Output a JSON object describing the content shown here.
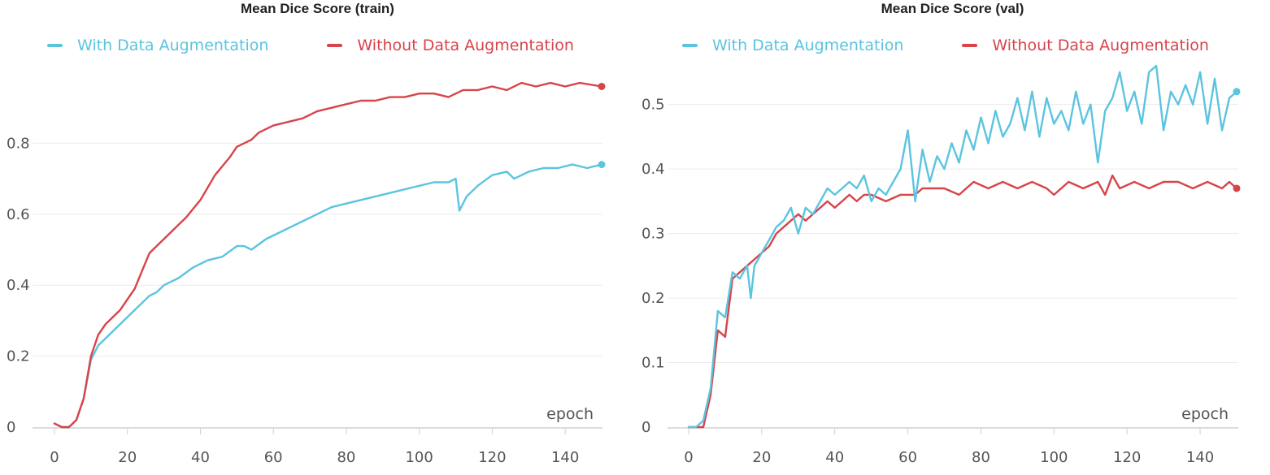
{
  "chart_data": [
    {
      "type": "line",
      "title": "Mean Dice Score (train)",
      "xlabel": "epoch",
      "ylabel": "",
      "xlim": [
        0,
        150
      ],
      "ylim": [
        0,
        1.0
      ],
      "xticks": [
        0,
        20,
        40,
        60,
        80,
        100,
        120,
        140
      ],
      "xtick_labels": [
        "0",
        "20",
        "40",
        "60",
        "80",
        "100",
        "120",
        "140"
      ],
      "yticks": [
        0,
        0.2,
        0.4,
        0.6,
        0.8
      ],
      "ytick_labels": [
        "0",
        "0.2",
        "0.4",
        "0.6",
        "0.8"
      ],
      "grid": "horizontal",
      "legend": "top-left",
      "series": [
        {
          "name": "With Data Augmentation",
          "color": "#5bc4df",
          "points": [
            [
              0,
              0.01
            ],
            [
              2,
              0.0
            ],
            [
              4,
              0.0
            ],
            [
              6,
              0.02
            ],
            [
              8,
              0.08
            ],
            [
              10,
              0.19
            ],
            [
              12,
              0.23
            ],
            [
              14,
              0.25
            ],
            [
              16,
              0.27
            ],
            [
              18,
              0.29
            ],
            [
              20,
              0.31
            ],
            [
              24,
              0.35
            ],
            [
              26,
              0.37
            ],
            [
              28,
              0.38
            ],
            [
              30,
              0.4
            ],
            [
              34,
              0.42
            ],
            [
              38,
              0.45
            ],
            [
              42,
              0.47
            ],
            [
              46,
              0.48
            ],
            [
              50,
              0.51
            ],
            [
              52,
              0.51
            ],
            [
              54,
              0.5
            ],
            [
              58,
              0.53
            ],
            [
              60,
              0.54
            ],
            [
              64,
              0.56
            ],
            [
              68,
              0.58
            ],
            [
              72,
              0.6
            ],
            [
              76,
              0.62
            ],
            [
              80,
              0.63
            ],
            [
              84,
              0.64
            ],
            [
              88,
              0.65
            ],
            [
              92,
              0.66
            ],
            [
              96,
              0.67
            ],
            [
              100,
              0.68
            ],
            [
              104,
              0.69
            ],
            [
              108,
              0.69
            ],
            [
              110,
              0.7
            ],
            [
              111,
              0.61
            ],
            [
              113,
              0.65
            ],
            [
              116,
              0.68
            ],
            [
              120,
              0.71
            ],
            [
              124,
              0.72
            ],
            [
              126,
              0.7
            ],
            [
              130,
              0.72
            ],
            [
              134,
              0.73
            ],
            [
              138,
              0.73
            ],
            [
              142,
              0.74
            ],
            [
              146,
              0.73
            ],
            [
              150,
              0.74
            ]
          ]
        },
        {
          "name": "Without Data Augmentation",
          "color": "#d9434a",
          "points": [
            [
              0,
              0.01
            ],
            [
              2,
              0.0
            ],
            [
              4,
              0.0
            ],
            [
              6,
              0.02
            ],
            [
              8,
              0.08
            ],
            [
              10,
              0.2
            ],
            [
              12,
              0.26
            ],
            [
              14,
              0.29
            ],
            [
              16,
              0.31
            ],
            [
              18,
              0.33
            ],
            [
              20,
              0.36
            ],
            [
              22,
              0.39
            ],
            [
              24,
              0.44
            ],
            [
              26,
              0.49
            ],
            [
              28,
              0.51
            ],
            [
              30,
              0.53
            ],
            [
              32,
              0.55
            ],
            [
              34,
              0.57
            ],
            [
              36,
              0.59
            ],
            [
              40,
              0.64
            ],
            [
              44,
              0.71
            ],
            [
              48,
              0.76
            ],
            [
              50,
              0.79
            ],
            [
              52,
              0.8
            ],
            [
              54,
              0.81
            ],
            [
              56,
              0.83
            ],
            [
              60,
              0.85
            ],
            [
              64,
              0.86
            ],
            [
              68,
              0.87
            ],
            [
              72,
              0.89
            ],
            [
              76,
              0.9
            ],
            [
              80,
              0.91
            ],
            [
              84,
              0.92
            ],
            [
              88,
              0.92
            ],
            [
              92,
              0.93
            ],
            [
              96,
              0.93
            ],
            [
              100,
              0.94
            ],
            [
              104,
              0.94
            ],
            [
              108,
              0.93
            ],
            [
              112,
              0.95
            ],
            [
              116,
              0.95
            ],
            [
              120,
              0.96
            ],
            [
              124,
              0.95
            ],
            [
              128,
              0.97
            ],
            [
              132,
              0.96
            ],
            [
              136,
              0.97
            ],
            [
              140,
              0.96
            ],
            [
              144,
              0.97
            ],
            [
              150,
              0.96
            ]
          ]
        }
      ]
    },
    {
      "type": "line",
      "title": "Mean Dice Score (val)",
      "xlabel": "epoch",
      "ylabel": "",
      "xlim": [
        0,
        150
      ],
      "ylim": [
        0,
        0.56
      ],
      "xticks": [
        0,
        20,
        40,
        60,
        80,
        100,
        120,
        140
      ],
      "xtick_labels": [
        "0",
        "20",
        "40",
        "60",
        "80",
        "100",
        "120",
        "140"
      ],
      "yticks": [
        0,
        0.1,
        0.2,
        0.3,
        0.4,
        0.5
      ],
      "ytick_labels": [
        "0",
        "0.1",
        "0.2",
        "0.3",
        "0.4",
        "0.5"
      ],
      "grid": "horizontal",
      "legend": "top-left",
      "series": [
        {
          "name": "With Data Augmentation",
          "color": "#5bc4df",
          "points": [
            [
              0,
              0.0
            ],
            [
              2,
              0.0
            ],
            [
              4,
              0.01
            ],
            [
              6,
              0.06
            ],
            [
              8,
              0.18
            ],
            [
              10,
              0.17
            ],
            [
              12,
              0.24
            ],
            [
              14,
              0.23
            ],
            [
              16,
              0.25
            ],
            [
              17,
              0.2
            ],
            [
              18,
              0.25
            ],
            [
              20,
              0.27
            ],
            [
              22,
              0.29
            ],
            [
              24,
              0.31
            ],
            [
              26,
              0.32
            ],
            [
              28,
              0.34
            ],
            [
              30,
              0.3
            ],
            [
              32,
              0.34
            ],
            [
              34,
              0.33
            ],
            [
              36,
              0.35
            ],
            [
              38,
              0.37
            ],
            [
              40,
              0.36
            ],
            [
              42,
              0.37
            ],
            [
              44,
              0.38
            ],
            [
              46,
              0.37
            ],
            [
              48,
              0.39
            ],
            [
              50,
              0.35
            ],
            [
              52,
              0.37
            ],
            [
              54,
              0.36
            ],
            [
              56,
              0.38
            ],
            [
              58,
              0.4
            ],
            [
              60,
              0.46
            ],
            [
              62,
              0.35
            ],
            [
              64,
              0.43
            ],
            [
              66,
              0.38
            ],
            [
              68,
              0.42
            ],
            [
              70,
              0.4
            ],
            [
              72,
              0.44
            ],
            [
              74,
              0.41
            ],
            [
              76,
              0.46
            ],
            [
              78,
              0.43
            ],
            [
              80,
              0.48
            ],
            [
              82,
              0.44
            ],
            [
              84,
              0.49
            ],
            [
              86,
              0.45
            ],
            [
              88,
              0.47
            ],
            [
              90,
              0.51
            ],
            [
              92,
              0.46
            ],
            [
              94,
              0.52
            ],
            [
              96,
              0.45
            ],
            [
              98,
              0.51
            ],
            [
              100,
              0.47
            ],
            [
              102,
              0.49
            ],
            [
              104,
              0.46
            ],
            [
              106,
              0.52
            ],
            [
              108,
              0.47
            ],
            [
              110,
              0.5
            ],
            [
              112,
              0.41
            ],
            [
              114,
              0.49
            ],
            [
              116,
              0.51
            ],
            [
              118,
              0.55
            ],
            [
              120,
              0.49
            ],
            [
              122,
              0.52
            ],
            [
              124,
              0.47
            ],
            [
              126,
              0.55
            ],
            [
              128,
              0.56
            ],
            [
              130,
              0.46
            ],
            [
              132,
              0.52
            ],
            [
              134,
              0.5
            ],
            [
              136,
              0.53
            ],
            [
              138,
              0.5
            ],
            [
              140,
              0.55
            ],
            [
              142,
              0.47
            ],
            [
              144,
              0.54
            ],
            [
              146,
              0.46
            ],
            [
              148,
              0.51
            ],
            [
              150,
              0.52
            ]
          ]
        },
        {
          "name": "Without Data Augmentation",
          "color": "#d9434a",
          "points": [
            [
              0,
              0.0
            ],
            [
              2,
              0.0
            ],
            [
              4,
              0.0
            ],
            [
              6,
              0.05
            ],
            [
              8,
              0.15
            ],
            [
              10,
              0.14
            ],
            [
              12,
              0.23
            ],
            [
              14,
              0.24
            ],
            [
              16,
              0.25
            ],
            [
              18,
              0.26
            ],
            [
              20,
              0.27
            ],
            [
              22,
              0.28
            ],
            [
              24,
              0.3
            ],
            [
              26,
              0.31
            ],
            [
              28,
              0.32
            ],
            [
              30,
              0.33
            ],
            [
              32,
              0.32
            ],
            [
              34,
              0.33
            ],
            [
              36,
              0.34
            ],
            [
              38,
              0.35
            ],
            [
              40,
              0.34
            ],
            [
              42,
              0.35
            ],
            [
              44,
              0.36
            ],
            [
              46,
              0.35
            ],
            [
              48,
              0.36
            ],
            [
              50,
              0.36
            ],
            [
              54,
              0.35
            ],
            [
              58,
              0.36
            ],
            [
              62,
              0.36
            ],
            [
              64,
              0.37
            ],
            [
              66,
              0.37
            ],
            [
              70,
              0.37
            ],
            [
              74,
              0.36
            ],
            [
              78,
              0.38
            ],
            [
              82,
              0.37
            ],
            [
              86,
              0.38
            ],
            [
              90,
              0.37
            ],
            [
              94,
              0.38
            ],
            [
              98,
              0.37
            ],
            [
              100,
              0.36
            ],
            [
              104,
              0.38
            ],
            [
              108,
              0.37
            ],
            [
              112,
              0.38
            ],
            [
              114,
              0.36
            ],
            [
              116,
              0.39
            ],
            [
              118,
              0.37
            ],
            [
              122,
              0.38
            ],
            [
              126,
              0.37
            ],
            [
              130,
              0.38
            ],
            [
              134,
              0.38
            ],
            [
              138,
              0.37
            ],
            [
              142,
              0.38
            ],
            [
              146,
              0.37
            ],
            [
              148,
              0.38
            ],
            [
              150,
              0.37
            ]
          ]
        }
      ]
    }
  ]
}
